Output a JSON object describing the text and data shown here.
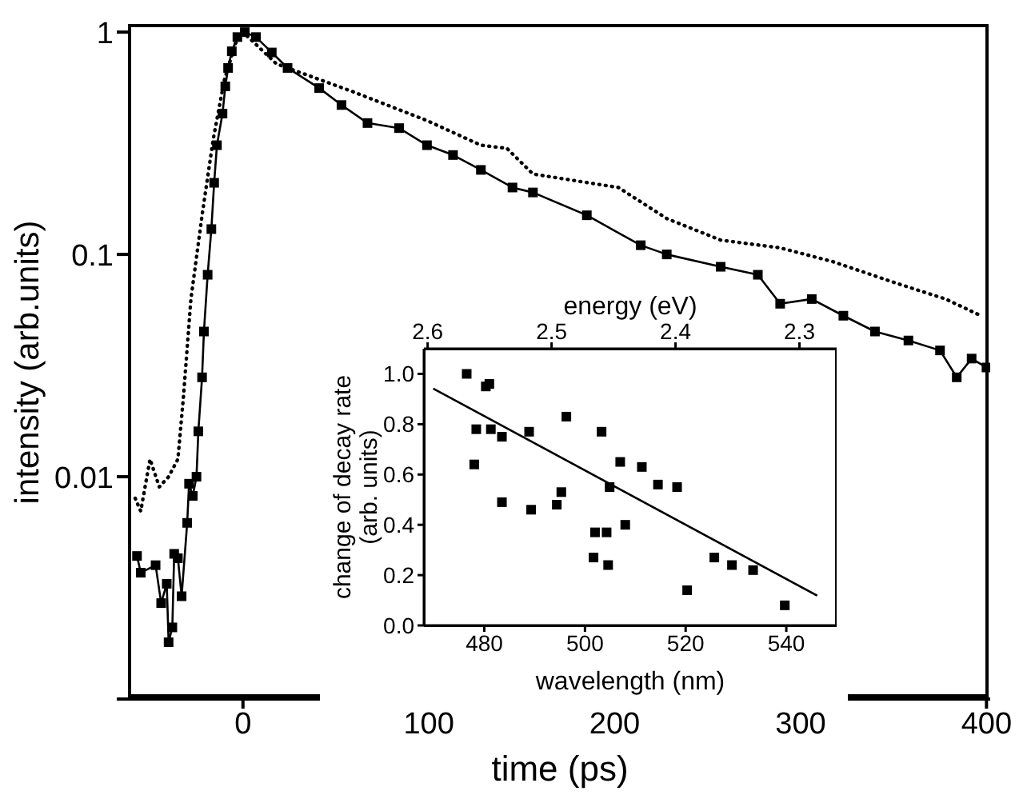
{
  "chart_data": [
    {
      "type": "line",
      "xlabel": "time (ps)",
      "ylabel": "intensity (arb.units)",
      "xlim": [
        -61,
        402
      ],
      "ylim": [
        0.001,
        1.07
      ],
      "xticks": [
        0,
        100,
        200,
        300,
        400
      ],
      "yticks": [
        1,
        0.1,
        0.01,
        {
          "value": 0.001,
          "label": null
        }
      ],
      "log": "y",
      "series": [
        {
          "color": "#000000",
          "marker": "square",
          "line_style": "solid",
          "x": [
            -57,
            -55,
            -47,
            -44,
            -41,
            -40,
            -38,
            -37,
            -35,
            -33,
            -30,
            -29,
            -27,
            -25,
            -24,
            -22,
            -21,
            -19,
            -17,
            -15.5,
            -14,
            -11,
            -9.5,
            -8,
            -6,
            -3,
            1,
            7,
            15.5,
            24,
            41,
            53,
            67,
            84,
            99,
            113,
            128,
            145,
            156,
            185,
            214,
            228,
            257,
            277,
            289,
            306,
            323,
            340,
            358,
            375,
            384,
            392,
            400
          ],
          "values": [
            0.0044,
            0.0037,
            0.004,
            0.0027,
            0.0033,
            0.0018,
            0.0021,
            0.0045,
            0.0043,
            0.0029,
            0.0062,
            0.0093,
            0.0082,
            0.01,
            0.016,
            0.028,
            0.045,
            0.081,
            0.13,
            0.21,
            0.31,
            0.43,
            0.57,
            0.69,
            0.82,
            0.95,
            1.0,
            0.95,
            0.81,
            0.69,
            0.56,
            0.47,
            0.39,
            0.37,
            0.31,
            0.28,
            0.24,
            0.2,
            0.19,
            0.15,
            0.11,
            0.1,
            0.088,
            0.081,
            0.06,
            0.063,
            0.053,
            0.045,
            0.041,
            0.037,
            0.028,
            0.034,
            0.031
          ]
        },
        {
          "color": "#000000",
          "marker": "none",
          "line_style": "dotted",
          "x": [
            -58,
            -55,
            -50,
            -45,
            -40,
            -35,
            -32,
            -28,
            -22,
            -16,
            -10,
            -4,
            0,
            18,
            59,
            99,
            128,
            142,
            156,
            202,
            228,
            257,
            289,
            317,
            352,
            378,
            397
          ],
          "values": [
            0.008,
            0.007,
            0.012,
            0.009,
            0.01,
            0.012,
            0.023,
            0.063,
            0.15,
            0.33,
            0.61,
            0.89,
            1.0,
            0.72,
            0.54,
            0.4,
            0.31,
            0.3,
            0.23,
            0.2,
            0.145,
            0.116,
            0.107,
            0.093,
            0.074,
            0.063,
            0.053
          ]
        }
      ]
    },
    {
      "type": "scatter",
      "xlabel": "wavelength (nm)",
      "x2label": "energy (eV)",
      "ylabel": "change of decay rate\n(arb. units)",
      "xlim": [
        468,
        550
      ],
      "x2lim": [
        2.603,
        2.27
      ],
      "xticks": [
        480,
        500,
        520,
        540
      ],
      "x2ticks": [
        2.6,
        2.5,
        2.4,
        2.3
      ],
      "ylim": [
        0,
        1.1
      ],
      "yticks": [
        {
          "value": 0,
          "label": "0.0"
        },
        {
          "value": 0.2,
          "label": "0.2"
        },
        {
          "value": 0.4,
          "label": "0.4"
        },
        {
          "value": 0.6,
          "label": "0.6"
        },
        {
          "value": 0.8,
          "label": "0.8"
        },
        {
          "value": 1,
          "label": "1.0"
        }
      ],
      "series": [
        {
          "color": "#000000",
          "marker": "square",
          "x": [
            476.5,
            478,
            478.4,
            480.3,
            481,
            481.3,
            483.5,
            483.5,
            488.9,
            489.3,
            494.4,
            495.3,
            496.3,
            502,
            501.7,
            503.3,
            504.3,
            504.6,
            504.9,
            507,
            508,
            511.3,
            514.5,
            518.3,
            520.3,
            525.7,
            529.2,
            533.4,
            539.7
          ],
          "values": [
            1.0,
            0.64,
            0.78,
            0.95,
            0.96,
            0.78,
            0.75,
            0.49,
            0.77,
            0.46,
            0.48,
            0.53,
            0.83,
            0.37,
            0.27,
            0.77,
            0.37,
            0.24,
            0.55,
            0.65,
            0.4,
            0.63,
            0.56,
            0.55,
            0.14,
            0.27,
            0.24,
            0.22,
            0.08
          ]
        },
        {
          "type": "line",
          "color": "#000000",
          "marker": "none",
          "line_style": "solid",
          "x": [
            470,
            546
          ],
          "values": [
            0.94,
            0.12
          ]
        }
      ]
    }
  ]
}
